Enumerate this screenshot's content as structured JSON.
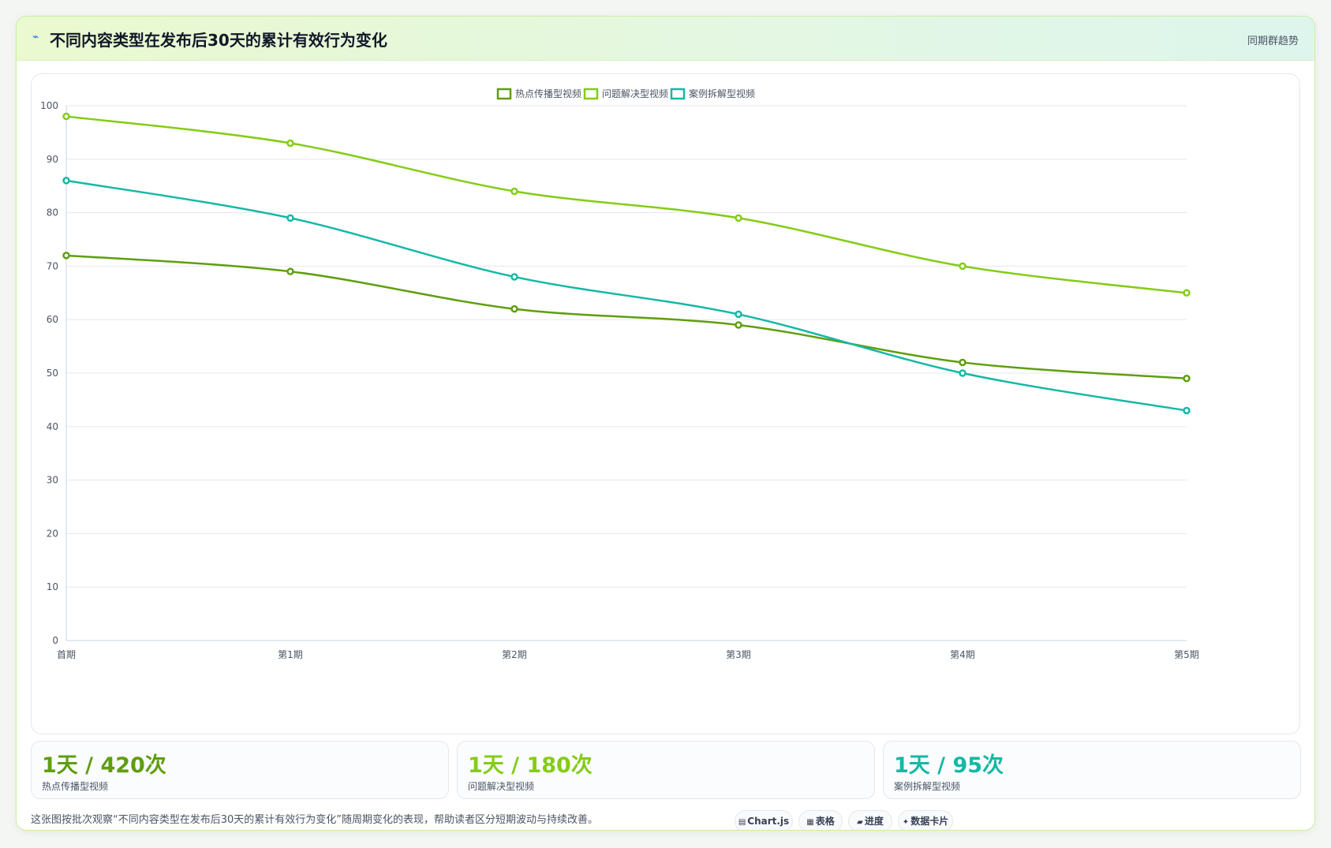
{
  "header": {
    "title": "不同内容类型在发布后30天的累计有效行为变化",
    "title_icon": "⌁",
    "right_label": "同期群趋势"
  },
  "chart_data": {
    "type": "line",
    "categories": [
      "首期",
      "第1期",
      "第2期",
      "第3期",
      "第4期",
      "第5期"
    ],
    "series": [
      {
        "name": "热点传播型视频",
        "color": "#5f9e0f",
        "values": [
          72,
          69,
          62,
          59,
          52,
          49
        ]
      },
      {
        "name": "问题解决型视频",
        "color": "#84cc16",
        "values": [
          98,
          93,
          84,
          79,
          70,
          65
        ]
      },
      {
        "name": "案例拆解型视频",
        "color": "#14b8a6",
        "values": [
          86,
          79,
          68,
          61,
          50,
          43
        ]
      }
    ],
    "ylim": [
      0,
      100
    ],
    "yticks": [
      0,
      10,
      20,
      30,
      40,
      50,
      60,
      70,
      80,
      90,
      100
    ],
    "xlabel": "",
    "ylabel": "",
    "grid": true,
    "legend_position": "top-center"
  },
  "stats": [
    {
      "value": "1天 / 420次",
      "label": "热点传播型视频",
      "color": "#5f9e0f"
    },
    {
      "value": "1天 / 180次",
      "label": "问题解决型视频",
      "color": "#84cc16"
    },
    {
      "value": "1天 / 95次",
      "label": "案例拆解型视频",
      "color": "#14b8a6"
    }
  ],
  "footer": {
    "note": "这张图按批次观察“不同内容类型在发布后30天的累计有效行为变化”随周期变化的表现，帮助读者区分短期波动与持续改善。",
    "pills": [
      {
        "icon": "▤",
        "label": "Chart.js"
      },
      {
        "icon": "▦",
        "label": "表格"
      },
      {
        "icon": "▰",
        "label": "进度"
      },
      {
        "icon": "✦",
        "label": "数据卡片"
      }
    ]
  }
}
